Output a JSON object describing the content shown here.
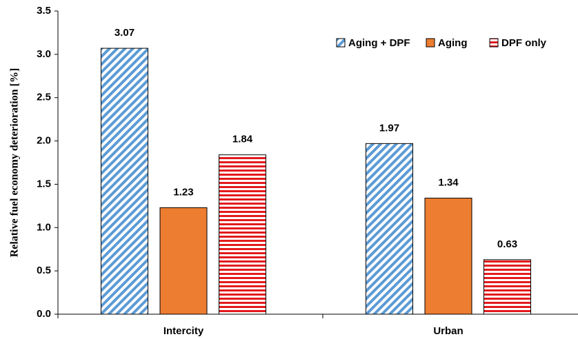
{
  "chart_data": {
    "type": "bar",
    "y_label": "Relative fuel economy deterioration [%]",
    "categories": [
      "Intercity",
      "Urban"
    ],
    "series": [
      {
        "name": "Aging + DPF",
        "color": "#5b9bd5",
        "pattern": "diagonal",
        "values": [
          3.07,
          1.97
        ]
      },
      {
        "name": "Aging",
        "color": "#ed7d31",
        "pattern": "solid",
        "values": [
          1.23,
          1.34
        ]
      },
      {
        "name": "DPF only",
        "color": "#e31a1c",
        "pattern": "horizontal",
        "values": [
          1.84,
          0.63
        ]
      }
    ],
    "ylim": [
      0,
      3.5
    ],
    "yticks": [
      {
        "value": 0,
        "label": "0.0"
      },
      0.5,
      {
        "value": 1,
        "label": "1.0"
      },
      1.5,
      {
        "value": 2,
        "label": "2.0"
      },
      2.5,
      {
        "value": 3,
        "label": "3.0"
      },
      3.5
    ],
    "grid": false,
    "legend": "top-right"
  }
}
